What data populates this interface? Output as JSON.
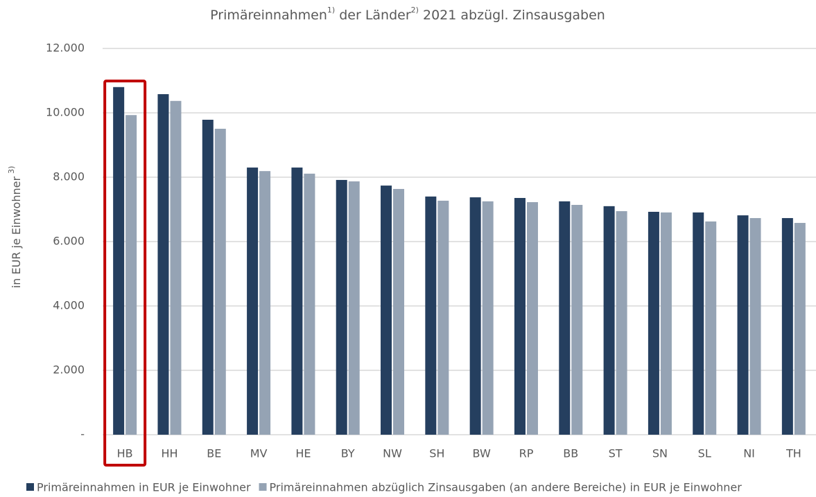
{
  "chart_data": {
    "type": "bar",
    "title": [
      "Primäreinnahmen",
      "1)",
      " der Länder",
      "2)",
      " 2021 abzügl. Zinsausgaben"
    ],
    "y_label": [
      "in EUR je Einwohner",
      "3)"
    ],
    "categories": [
      "HB",
      "HH",
      "BE",
      "MV",
      "HE",
      "BY",
      "NW",
      "SH",
      "BW",
      "RP",
      "BB",
      "ST",
      "SN",
      "SL",
      "NI",
      "TH"
    ],
    "series": [
      {
        "name": "Primäreinnahmen in EUR je Einwohner",
        "color": "#253f5f",
        "values": [
          10800,
          10580,
          9785,
          8300,
          8300,
          7915,
          7740,
          7400,
          7375,
          7355,
          7250,
          7100,
          6925,
          6905,
          6815,
          6730
        ]
      },
      {
        "name": "Primäreinnahmen abzüglich Zinsausgaben (an andere Bereiche) in EUR je Einwohner",
        "color": "#95a3b4",
        "values": [
          9930,
          10370,
          9505,
          8190,
          8110,
          7870,
          7635,
          7270,
          7250,
          7225,
          7140,
          6945,
          6905,
          6625,
          6730,
          6580
        ]
      }
    ],
    "ylim": [
      0,
      12000
    ],
    "yticks": [
      {
        "value": 0,
        "label": "-"
      },
      {
        "value": 2000,
        "label": "2.000"
      },
      {
        "value": 4000,
        "label": "4.000"
      },
      {
        "value": 6000,
        "label": "6.000"
      },
      {
        "value": 8000,
        "label": "8.000"
      },
      {
        "value": 10000,
        "label": "10.000"
      },
      {
        "value": 12000,
        "label": "12.000"
      }
    ],
    "grid": true,
    "legend": "bottom",
    "highlight_color": "#c00000"
  }
}
